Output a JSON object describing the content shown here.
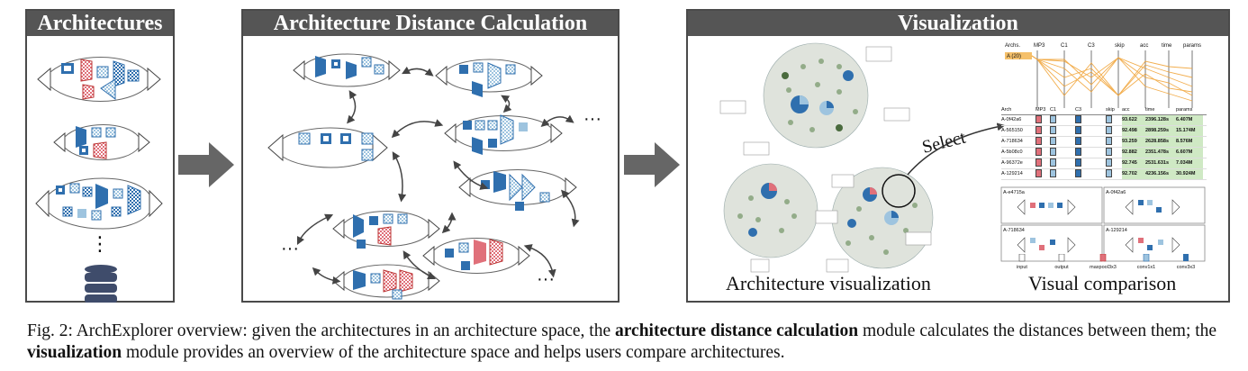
{
  "panels": {
    "architectures": {
      "title": "Architectures",
      "ellipsis": "⋮"
    },
    "distance": {
      "title": "Architecture Distance Calculation",
      "ellipsis": [
        "···",
        "···",
        "···"
      ]
    },
    "visualization": {
      "title": "Visualization",
      "select_label": "Select",
      "left_caption": "Architecture visualization",
      "right_caption": "Visual comparison",
      "pc_axes": [
        "Archs.",
        "MP3",
        "C1",
        "C3",
        "skip",
        "acc",
        "time",
        "params"
      ],
      "pc_selected": "A (20)",
      "table_headers": [
        "Arch",
        "MP3",
        "C1",
        "C3",
        "skip",
        "acc",
        "time",
        "params"
      ],
      "table_rows": [
        {
          "arch": "A-0f42a6",
          "acc": "93.622",
          "time": "2396.128s",
          "params": "6.407M"
        },
        {
          "arch": "A-565150",
          "acc": "92.498",
          "time": "2898.259s",
          "params": "15.174M"
        },
        {
          "arch": "A-718634",
          "acc": "93.259",
          "time": "2628.858s",
          "params": "8.576M"
        },
        {
          "arch": "A-5b08c0",
          "acc": "92.882",
          "time": "2351.478s",
          "params": "6.607M"
        },
        {
          "arch": "A-96372e",
          "acc": "92.745",
          "time": "2531.631s",
          "params": "7.034M"
        },
        {
          "arch": "A-129214",
          "acc": "92.702",
          "time": "4236.156s",
          "params": "30.924M"
        }
      ],
      "cards": [
        "A-e4715a",
        "A-0f42a6",
        "A-718634",
        "A-129214"
      ],
      "legend": [
        "input",
        "output",
        "maxpool3x3",
        "conv1x1",
        "conv3x3"
      ]
    }
  },
  "caption": {
    "prefix": "Fig. 2: ArchExplorer overview: given the architectures in an architecture space, the ",
    "bold1": "architecture distance calculation",
    "mid1": " module calculates the distances between them; the ",
    "bold2": "visualization",
    "suffix": " module provides an overview of the architecture space and helps users compare architectures."
  },
  "colors": {
    "panel_header": "#555555",
    "conv1x1": "#9ec4df",
    "conv3x3": "#2f6fae",
    "maxpool": "#e0707a",
    "node_green": "#7a9a6e",
    "orange": "#f0a030"
  }
}
